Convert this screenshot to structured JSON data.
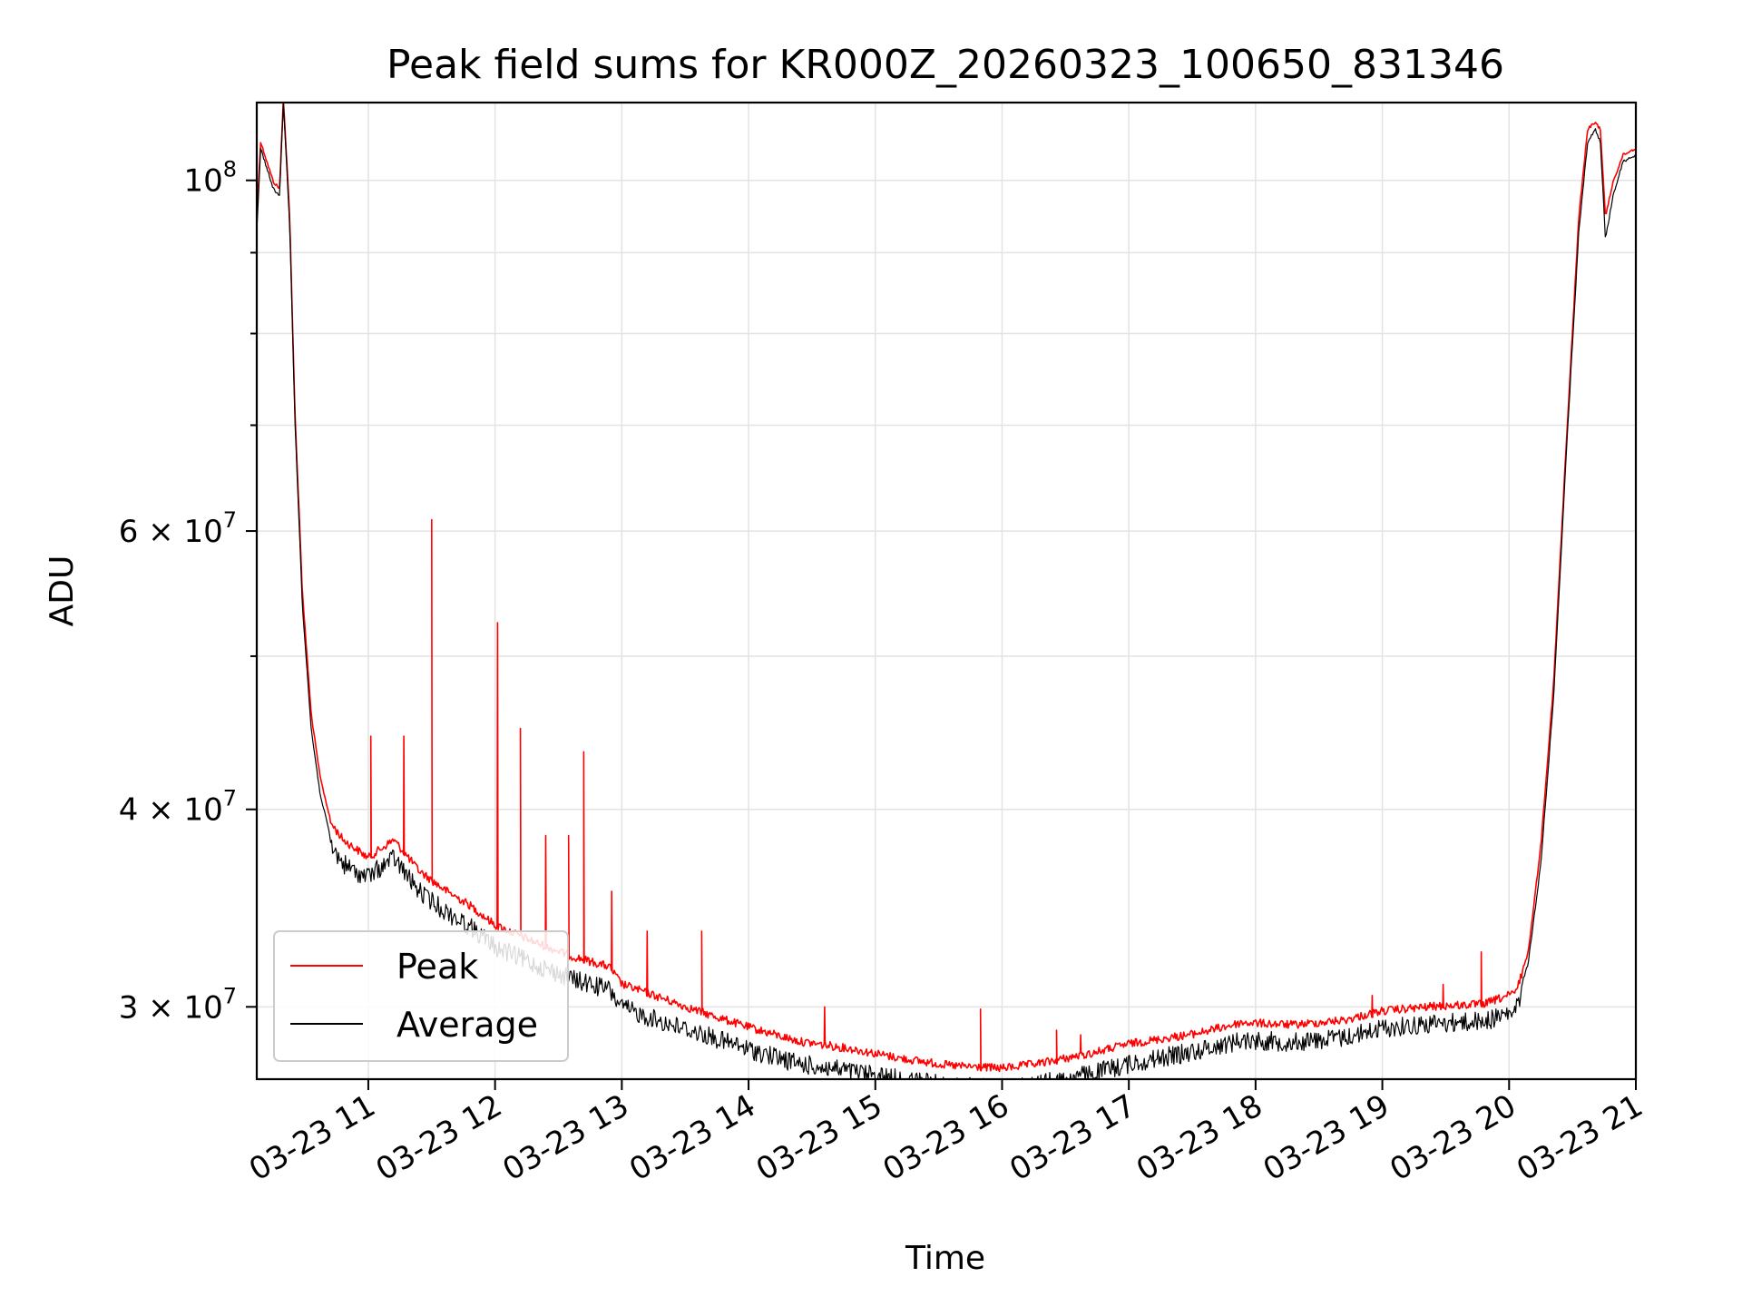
{
  "chart_data": {
    "type": "line",
    "title": "Peak field sums for KR000Z_20260323_100650_831346",
    "xlabel": "Time",
    "ylabel": "ADU",
    "yscale": "log",
    "x_unit": "hours",
    "xlim": [
      10.12,
      21.0
    ],
    "ylim": [
      27000000,
      112000000
    ],
    "grid": true,
    "legend_position": "lower-left",
    "x_ticks": [
      {
        "value": 11,
        "label": "03-23 11"
      },
      {
        "value": 12,
        "label": "03-23 12"
      },
      {
        "value": 13,
        "label": "03-23 13"
      },
      {
        "value": 14,
        "label": "03-23 14"
      },
      {
        "value": 15,
        "label": "03-23 15"
      },
      {
        "value": 16,
        "label": "03-23 16"
      },
      {
        "value": 17,
        "label": "03-23 17"
      },
      {
        "value": 18,
        "label": "03-23 18"
      },
      {
        "value": 19,
        "label": "03-23 19"
      },
      {
        "value": 20,
        "label": "03-23 20"
      },
      {
        "value": 21,
        "label": "03-23 21"
      }
    ],
    "y_major_ticks": [
      {
        "value": 100000000,
        "base": "10",
        "exp": "8",
        "coef": ""
      },
      {
        "value": 60000000,
        "base": "10",
        "exp": "7",
        "coef": "6"
      },
      {
        "value": 40000000,
        "base": "10",
        "exp": "7",
        "coef": "4"
      },
      {
        "value": 30000000,
        "base": "10",
        "exp": "7",
        "coef": "3"
      }
    ],
    "y_minor_ticks": [
      90000000,
      80000000,
      70000000,
      50000000
    ],
    "series": [
      {
        "name": "Peak",
        "color": "#ff0000",
        "x": [
          10.12,
          10.15,
          10.2,
          10.25,
          10.3,
          10.33,
          10.38,
          10.42,
          10.48,
          10.55,
          10.62,
          10.7,
          10.8,
          10.9,
          11.0,
          11.2,
          11.4,
          11.6,
          11.8,
          12.0,
          12.3,
          12.6,
          12.9,
          13.0,
          13.3,
          13.6,
          14.0,
          14.4,
          14.8,
          15.2,
          15.6,
          16.0,
          16.3,
          16.7,
          17.0,
          17.5,
          17.9,
          18.3,
          18.7,
          19.0,
          19.4,
          19.8,
          20.05,
          20.15,
          20.25,
          20.35,
          20.45,
          20.55,
          20.62,
          20.68,
          20.72,
          20.76,
          20.82,
          20.9,
          21.0
        ],
        "values": [
          95000000,
          106000000,
          103000000,
          100000000,
          99000000,
          113000000,
          95000000,
          72000000,
          55000000,
          46000000,
          42000000,
          39500000,
          38500000,
          38000000,
          37500000,
          38500000,
          36800000,
          35800000,
          35000000,
          34000000,
          33200000,
          32500000,
          32000000,
          31200000,
          30600000,
          30000000,
          29300000,
          28700000,
          28400000,
          28000000,
          27700000,
          27600000,
          27800000,
          28200000,
          28600000,
          29000000,
          29500000,
          29400000,
          29600000,
          30000000,
          30200000,
          30300000,
          30800000,
          32500000,
          38000000,
          48000000,
          68000000,
          95000000,
          108000000,
          109000000,
          108000000,
          95000000,
          100000000,
          104000000,
          105000000
        ],
        "spikes": [
          {
            "x": 11.02,
            "value": 44500000
          },
          {
            "x": 11.28,
            "value": 44500000
          },
          {
            "x": 11.5,
            "value": 61000000
          },
          {
            "x": 12.02,
            "value": 52500000
          },
          {
            "x": 12.2,
            "value": 45000000
          },
          {
            "x": 12.4,
            "value": 38500000
          },
          {
            "x": 12.58,
            "value": 38500000
          },
          {
            "x": 12.7,
            "value": 43500000
          },
          {
            "x": 12.92,
            "value": 35500000
          },
          {
            "x": 13.2,
            "value": 33500000
          },
          {
            "x": 13.63,
            "value": 33500000
          },
          {
            "x": 14.6,
            "value": 30000000
          },
          {
            "x": 15.83,
            "value": 29900000
          },
          {
            "x": 16.43,
            "value": 29000000
          },
          {
            "x": 16.62,
            "value": 28800000
          },
          {
            "x": 18.92,
            "value": 30500000
          },
          {
            "x": 19.48,
            "value": 31000000
          },
          {
            "x": 19.78,
            "value": 32500000
          }
        ]
      },
      {
        "name": "Average",
        "color": "#000000",
        "x": [
          10.12,
          10.15,
          10.2,
          10.25,
          10.3,
          10.33,
          10.38,
          10.42,
          10.48,
          10.55,
          10.62,
          10.7,
          10.8,
          10.9,
          11.0,
          11.2,
          11.4,
          11.6,
          11.8,
          12.0,
          12.3,
          12.6,
          12.9,
          13.0,
          13.3,
          13.6,
          14.0,
          14.4,
          14.8,
          15.2,
          15.6,
          16.0,
          16.3,
          16.7,
          17.0,
          17.5,
          17.9,
          18.3,
          18.7,
          19.0,
          19.4,
          19.8,
          20.05,
          20.15,
          20.25,
          20.35,
          20.45,
          20.55,
          20.62,
          20.68,
          20.72,
          20.76,
          20.82,
          20.9,
          21.0
        ],
        "values": [
          93000000,
          105000000,
          102000000,
          99000000,
          98000000,
          112000000,
          94000000,
          71000000,
          54000000,
          45000000,
          41000000,
          38500000,
          37500000,
          37000000,
          36800000,
          37800000,
          36000000,
          35000000,
          34200000,
          33200000,
          32400000,
          31700000,
          31200000,
          30400000,
          29800000,
          29300000,
          28600000,
          28000000,
          27700000,
          27400000,
          27100000,
          27000000,
          27200000,
          27600000,
          28000000,
          28500000,
          29000000,
          28900000,
          29100000,
          29500000,
          29700000,
          29800000,
          30200000,
          32000000,
          37000000,
          47000000,
          67000000,
          93000000,
          106000000,
          108000000,
          106000000,
          92000000,
          98000000,
          103000000,
          104000000
        ]
      }
    ],
    "legend": [
      {
        "label": "Peak",
        "color": "#ff0000"
      },
      {
        "label": "Average",
        "color": "#000000"
      }
    ]
  }
}
